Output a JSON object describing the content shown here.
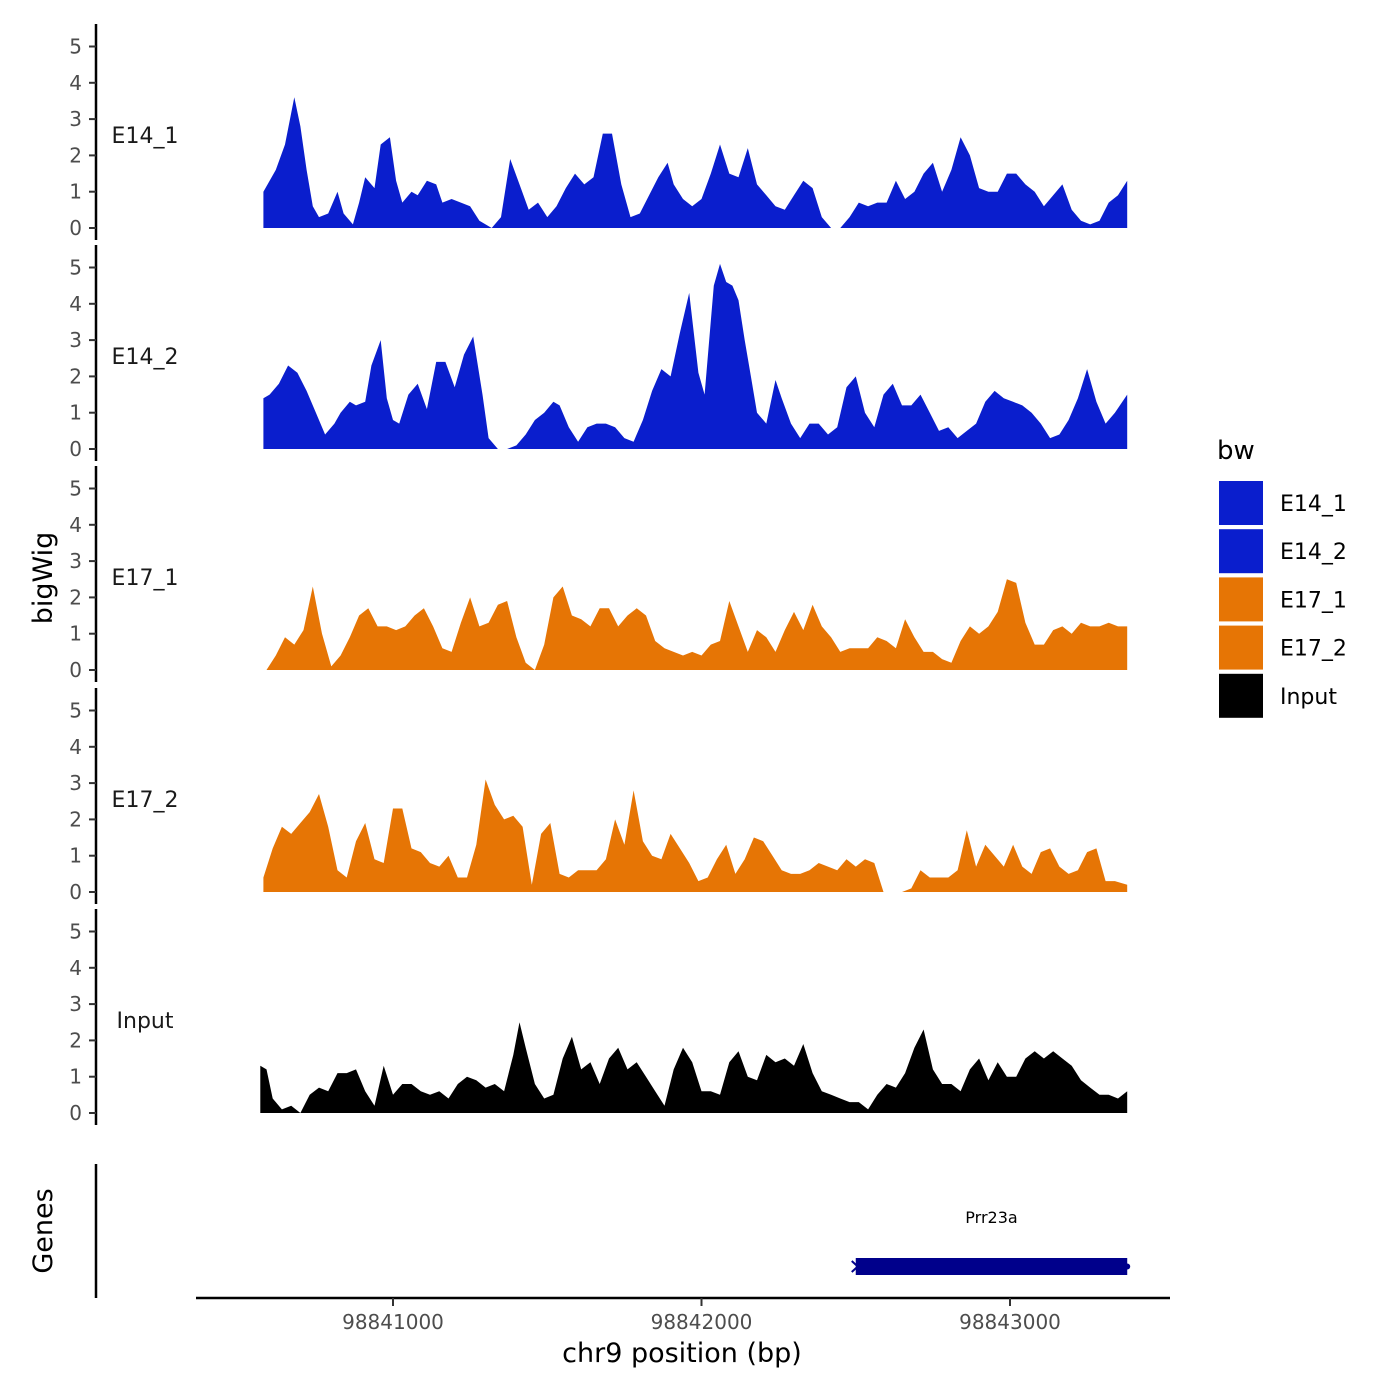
{
  "chart_data": {
    "type": "area",
    "title": "",
    "ylabel": "bigWig",
    "xlabel": "chr9 position (bp)",
    "xlim": [
      98840420,
      98843590
    ],
    "ylim": [
      0,
      5.4
    ],
    "x_ticks": [
      98841000,
      98842000,
      98843000
    ],
    "x_tick_labels": [
      "98841000",
      "98842000",
      "98843000"
    ],
    "y_ticks": [
      0,
      1,
      2,
      3,
      4,
      5
    ],
    "y_tick_labels": [
      "0",
      "1",
      "2",
      "3",
      "4",
      "5"
    ],
    "legend": {
      "title": "bw",
      "placement": "right",
      "entries": [
        {
          "label": "E14_1",
          "color": "#0a1ecd"
        },
        {
          "label": "E14_2",
          "color": "#0a1ecd"
        },
        {
          "label": "E17_1",
          "color": "#e67505"
        },
        {
          "label": "E17_2",
          "color": "#e67505"
        },
        {
          "label": "Input",
          "color": "#000000"
        }
      ]
    },
    "series": [
      {
        "name": "E14_1",
        "label": "E14_1",
        "color": "#0a1ecd",
        "x": [
          98840580,
          98840620,
          98840650,
          98840680,
          98840700,
          98840720,
          98840740,
          98840760,
          98840790,
          98840820,
          98840840,
          98840870,
          98840890,
          98840910,
          98840940,
          98840960,
          98840990,
          98841010,
          98841030,
          98841060,
          98841080,
          98841110,
          98841140,
          98841160,
          98841190,
          98841220,
          98841250,
          98841280,
          98841320,
          98841350,
          98841380,
          98841410,
          98841440,
          98841470,
          98841500,
          98841530,
          98841560,
          98841590,
          98841620,
          98841650,
          98841680,
          98841710,
          98841740,
          98841770,
          98841800,
          98841830,
          98841860,
          98841890,
          98841910,
          98841940,
          98841970,
          98842000,
          98842030,
          98842060,
          98842090,
          98842120,
          98842150,
          98842180,
          98842210,
          98842240,
          98842270,
          98842300,
          98842330,
          98842360,
          98842390,
          98842420,
          98842450,
          98842480,
          98842510,
          98842540,
          98842570,
          98842600,
          98842630,
          98842660,
          98842690,
          98842720,
          98842750,
          98842780,
          98842810,
          98842840,
          98842870,
          98842900,
          98842930,
          98842960,
          98842990,
          98843020,
          98843050,
          98843080,
          98843110,
          98843140,
          98843170,
          98843200,
          98843230,
          98843260,
          98843290,
          98843320,
          98843350,
          98843380
        ],
        "y": [
          1.0,
          1.6,
          2.3,
          3.6,
          2.8,
          1.6,
          0.6,
          0.3,
          0.4,
          1.0,
          0.4,
          0.1,
          0.7,
          1.4,
          1.1,
          2.3,
          2.5,
          1.3,
          0.7,
          1.0,
          0.9,
          1.3,
          1.2,
          0.7,
          0.8,
          0.7,
          0.6,
          0.2,
          0.0,
          0.3,
          1.9,
          1.2,
          0.5,
          0.7,
          0.3,
          0.6,
          1.1,
          1.5,
          1.2,
          1.4,
          2.6,
          2.6,
          1.2,
          0.3,
          0.4,
          0.9,
          1.4,
          1.8,
          1.2,
          0.8,
          0.6,
          0.8,
          1.5,
          2.3,
          1.5,
          1.4,
          2.2,
          1.2,
          0.9,
          0.6,
          0.5,
          0.9,
          1.3,
          1.1,
          0.3,
          0.0,
          0.0,
          0.3,
          0.7,
          0.6,
          0.7,
          0.7,
          1.3,
          0.8,
          1.0,
          1.5,
          1.8,
          1.0,
          1.6,
          2.5,
          2.0,
          1.1,
          1.0,
          1.0,
          1.5,
          1.5,
          1.2,
          1.0,
          0.6,
          0.9,
          1.2,
          0.5,
          0.2,
          0.1,
          0.2,
          0.7,
          0.9,
          1.3
        ]
      },
      {
        "name": "E14_2",
        "label": "E14_2",
        "color": "#0a1ecd",
        "x": [
          98840580,
          98840600,
          98840630,
          98840660,
          98840690,
          98840720,
          98840750,
          98840780,
          98840810,
          98840830,
          98840860,
          98840880,
          98840910,
          98840930,
          98840960,
          98840980,
          98841000,
          98841020,
          98841050,
          98841080,
          98841110,
          98841140,
          98841170,
          98841200,
          98841230,
          98841260,
          98841290,
          98841310,
          98841340,
          98841370,
          98841400,
          98841430,
          98841460,
          98841490,
          98841520,
          98841540,
          98841570,
          98841600,
          98841630,
          98841660,
          98841690,
          98841720,
          98841750,
          98841780,
          98841810,
          98841840,
          98841870,
          98841900,
          98841930,
          98841960,
          98841990,
          98842010,
          98842040,
          98842060,
          98842080,
          98842100,
          98842120,
          98842140,
          98842160,
          98842180,
          98842210,
          98842240,
          98842260,
          98842290,
          98842320,
          98842350,
          98842380,
          98842410,
          98842440,
          98842470,
          98842500,
          98842530,
          98842560,
          98842590,
          98842620,
          98842650,
          98842680,
          98842710,
          98842740,
          98842770,
          98842800,
          98842830,
          98842860,
          98842890,
          98842920,
          98842950,
          98842980,
          98843010,
          98843040,
          98843070,
          98843100,
          98843130,
          98843160,
          98843190,
          98843220,
          98843250,
          98843280,
          98843310,
          98843340,
          98843380
        ],
        "y": [
          1.4,
          1.5,
          1.8,
          2.3,
          2.1,
          1.6,
          1.0,
          0.4,
          0.7,
          1.0,
          1.3,
          1.2,
          1.3,
          2.3,
          3.0,
          1.4,
          0.8,
          0.7,
          1.5,
          1.8,
          1.1,
          2.4,
          2.4,
          1.7,
          2.6,
          3.1,
          1.5,
          0.3,
          0.0,
          0.0,
          0.1,
          0.4,
          0.8,
          1.0,
          1.3,
          1.2,
          0.6,
          0.2,
          0.6,
          0.7,
          0.7,
          0.6,
          0.3,
          0.2,
          0.8,
          1.6,
          2.2,
          2.0,
          3.2,
          4.3,
          2.1,
          1.5,
          4.5,
          5.1,
          4.6,
          4.5,
          4.1,
          3.0,
          2.0,
          1.0,
          0.7,
          1.9,
          1.4,
          0.7,
          0.3,
          0.7,
          0.7,
          0.4,
          0.6,
          1.7,
          2.0,
          1.0,
          0.6,
          1.5,
          1.8,
          1.2,
          1.2,
          1.5,
          1.0,
          0.5,
          0.6,
          0.3,
          0.5,
          0.7,
          1.3,
          1.6,
          1.4,
          1.3,
          1.2,
          1.0,
          0.7,
          0.3,
          0.4,
          0.8,
          1.4,
          2.2,
          1.3,
          0.7,
          1.0,
          1.5
        ]
      },
      {
        "name": "E17_1",
        "label": "E17_1",
        "color": "#e67505",
        "x": [
          98840590,
          98840620,
          98840650,
          98840680,
          98840710,
          98840740,
          98840770,
          98840800,
          98840830,
          98840860,
          98840890,
          98840920,
          98840950,
          98840980,
          98841010,
          98841040,
          98841070,
          98841100,
          98841130,
          98841160,
          98841190,
          98841220,
          98841250,
          98841280,
          98841310,
          98841340,
          98841370,
          98841400,
          98841430,
          98841460,
          98841490,
          98841520,
          98841550,
          98841580,
          98841610,
          98841640,
          98841670,
          98841700,
          98841730,
          98841760,
          98841790,
          98841820,
          98841850,
          98841880,
          98841910,
          98841940,
          98841970,
          98842000,
          98842030,
          98842060,
          98842090,
          98842120,
          98842150,
          98842180,
          98842210,
          98842240,
          98842270,
          98842300,
          98842330,
          98842360,
          98842390,
          98842420,
          98842450,
          98842480,
          98842510,
          98842540,
          98842570,
          98842600,
          98842630,
          98842660,
          98842690,
          98842720,
          98842750,
          98842780,
          98842810,
          98842840,
          98842870,
          98842900,
          98842930,
          98842960,
          98842990,
          98843020,
          98843050,
          98843080,
          98843110,
          98843140,
          98843170,
          98843200,
          98843230,
          98843260,
          98843290,
          98843320,
          98843350,
          98843380
        ],
        "y": [
          0.0,
          0.4,
          0.9,
          0.7,
          1.1,
          2.3,
          1.0,
          0.1,
          0.4,
          0.9,
          1.5,
          1.7,
          1.2,
          1.2,
          1.1,
          1.2,
          1.5,
          1.7,
          1.2,
          0.6,
          0.5,
          1.3,
          2.0,
          1.2,
          1.3,
          1.8,
          1.9,
          0.9,
          0.2,
          0.0,
          0.7,
          2.0,
          2.3,
          1.5,
          1.4,
          1.2,
          1.7,
          1.7,
          1.2,
          1.5,
          1.7,
          1.5,
          0.8,
          0.6,
          0.5,
          0.4,
          0.5,
          0.4,
          0.7,
          0.8,
          1.9,
          1.2,
          0.5,
          1.1,
          0.9,
          0.5,
          1.1,
          1.6,
          1.1,
          1.8,
          1.2,
          0.9,
          0.5,
          0.6,
          0.6,
          0.6,
          0.9,
          0.8,
          0.6,
          1.4,
          0.9,
          0.5,
          0.5,
          0.3,
          0.2,
          0.8,
          1.2,
          1.0,
          1.2,
          1.6,
          2.5,
          2.4,
          1.3,
          0.7,
          0.7,
          1.1,
          1.2,
          1.0,
          1.3,
          1.2,
          1.2,
          1.3,
          1.2,
          1.2
        ]
      },
      {
        "name": "E17_2",
        "label": "E17_2",
        "color": "#e67505",
        "x": [
          98840580,
          98840610,
          98840640,
          98840670,
          98840700,
          98840730,
          98840760,
          98840790,
          98840820,
          98840850,
          98840880,
          98840910,
          98840940,
          98840970,
          98841000,
          98841030,
          98841060,
          98841090,
          98841120,
          98841150,
          98841180,
          98841210,
          98841240,
          98841270,
          98841300,
          98841330,
          98841360,
          98841390,
          98841420,
          98841450,
          98841480,
          98841510,
          98841540,
          98841570,
          98841600,
          98841630,
          98841660,
          98841690,
          98841720,
          98841750,
          98841780,
          98841810,
          98841840,
          98841870,
          98841900,
          98841930,
          98841960,
          98841990,
          98842020,
          98842050,
          98842080,
          98842110,
          98842140,
          98842170,
          98842200,
          98842230,
          98842260,
          98842290,
          98842320,
          98842350,
          98842380,
          98842410,
          98842440,
          98842470,
          98842500,
          98842530,
          98842560,
          98842590,
          98842620,
          98842650,
          98842680,
          98842710,
          98842740,
          98842770,
          98842800,
          98842830,
          98842860,
          98842890,
          98842920,
          98842950,
          98842980,
          98843010,
          98843040,
          98843070,
          98843100,
          98843130,
          98843160,
          98843190,
          98843220,
          98843250,
          98843280,
          98843310,
          98843340,
          98843380
        ],
        "y": [
          0.4,
          1.2,
          1.8,
          1.6,
          1.9,
          2.2,
          2.7,
          1.8,
          0.6,
          0.4,
          1.4,
          1.9,
          0.9,
          0.8,
          2.3,
          2.3,
          1.2,
          1.1,
          0.8,
          0.7,
          1.0,
          0.4,
          0.4,
          1.3,
          3.1,
          2.4,
          2.0,
          2.1,
          1.8,
          0.2,
          1.6,
          1.9,
          0.5,
          0.4,
          0.6,
          0.6,
          0.6,
          0.9,
          2.0,
          1.3,
          2.8,
          1.4,
          1.0,
          0.9,
          1.6,
          1.2,
          0.8,
          0.3,
          0.4,
          0.9,
          1.3,
          0.5,
          0.9,
          1.5,
          1.4,
          1.0,
          0.6,
          0.5,
          0.5,
          0.6,
          0.8,
          0.7,
          0.6,
          0.9,
          0.7,
          0.9,
          0.8,
          0.0,
          0.0,
          0.0,
          0.1,
          0.6,
          0.4,
          0.4,
          0.4,
          0.6,
          1.7,
          0.7,
          1.3,
          1.0,
          0.7,
          1.3,
          0.7,
          0.5,
          1.1,
          1.2,
          0.7,
          0.5,
          0.6,
          1.1,
          1.2,
          0.3,
          0.3,
          0.2
        ]
      },
      {
        "name": "Input",
        "label": "Input",
        "color": "#000000",
        "x": [
          98840570,
          98840590,
          98840610,
          98840640,
          98840670,
          98840700,
          98840730,
          98840760,
          98840790,
          98840820,
          98840850,
          98840880,
          98840910,
          98840940,
          98840970,
          98841000,
          98841030,
          98841060,
          98841090,
          98841120,
          98841150,
          98841180,
          98841210,
          98841240,
          98841270,
          98841300,
          98841330,
          98841360,
          98841390,
          98841410,
          98841430,
          98841460,
          98841490,
          98841520,
          98841550,
          98841580,
          98841610,
          98841640,
          98841670,
          98841700,
          98841730,
          98841760,
          98841790,
          98841820,
          98841850,
          98841880,
          98841910,
          98841940,
          98841970,
          98842000,
          98842030,
          98842060,
          98842090,
          98842120,
          98842150,
          98842180,
          98842210,
          98842240,
          98842270,
          98842300,
          98842330,
          98842360,
          98842390,
          98842420,
          98842450,
          98842480,
          98842510,
          98842540,
          98842570,
          98842600,
          98842630,
          98842660,
          98842690,
          98842720,
          98842750,
          98842780,
          98842810,
          98842840,
          98842870,
          98842900,
          98842930,
          98842960,
          98842990,
          98843020,
          98843050,
          98843080,
          98843110,
          98843140,
          98843170,
          98843200,
          98843230,
          98843260,
          98843290,
          98843320,
          98843350,
          98843380
        ],
        "y": [
          1.3,
          1.2,
          0.4,
          0.1,
          0.2,
          0.0,
          0.5,
          0.7,
          0.6,
          1.1,
          1.1,
          1.2,
          0.6,
          0.2,
          1.3,
          0.5,
          0.8,
          0.8,
          0.6,
          0.5,
          0.6,
          0.4,
          0.8,
          1.0,
          0.9,
          0.7,
          0.8,
          0.6,
          1.6,
          2.5,
          1.8,
          0.8,
          0.4,
          0.5,
          1.5,
          2.1,
          1.2,
          1.4,
          0.8,
          1.5,
          1.8,
          1.2,
          1.4,
          1.0,
          0.6,
          0.2,
          1.2,
          1.8,
          1.4,
          0.6,
          0.6,
          0.5,
          1.4,
          1.7,
          1.0,
          0.9,
          1.6,
          1.4,
          1.5,
          1.3,
          1.9,
          1.1,
          0.6,
          0.5,
          0.4,
          0.3,
          0.3,
          0.1,
          0.5,
          0.8,
          0.7,
          1.1,
          1.8,
          2.3,
          1.2,
          0.8,
          0.8,
          0.6,
          1.2,
          1.5,
          0.9,
          1.4,
          1.0,
          1.0,
          1.5,
          1.7,
          1.5,
          1.7,
          1.5,
          1.3,
          0.9,
          0.7,
          0.5,
          0.5,
          0.4,
          0.6
        ]
      }
    ],
    "genes_track": {
      "label": "Genes",
      "genes": [
        {
          "name": "Prr23a",
          "start": 98842500,
          "end": 98843380,
          "strand": "-",
          "color": "#00008b"
        }
      ]
    }
  }
}
